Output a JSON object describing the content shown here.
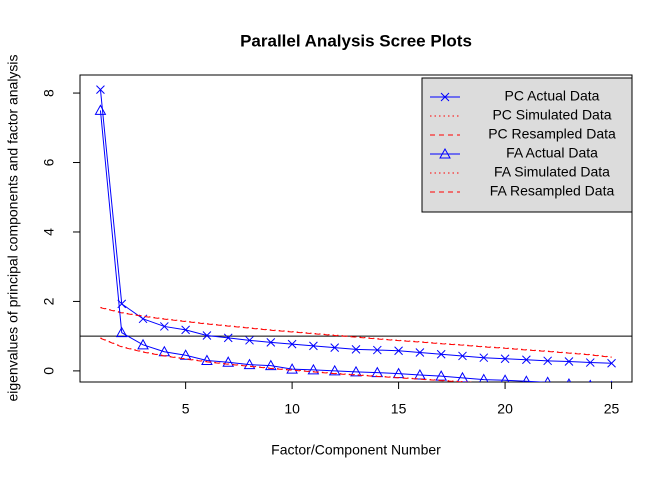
{
  "chart_data": {
    "type": "line",
    "title": "Parallel Analysis Scree Plots",
    "xlabel": "Factor/Component Number",
    "ylabel": "eigenvalues of principal components and factor analysis",
    "x": [
      1,
      2,
      3,
      4,
      5,
      6,
      7,
      8,
      9,
      10,
      11,
      12,
      13,
      14,
      15,
      16,
      17,
      18,
      19,
      20,
      21,
      22,
      23,
      24,
      25
    ],
    "xlim": [
      0.04,
      25.96
    ],
    "xticks": [
      5,
      10,
      15,
      20,
      25
    ],
    "ylim": [
      -0.32,
      8.52
    ],
    "yticks": [
      0,
      2,
      4,
      6,
      8
    ],
    "hline": 1,
    "legend": "top-right",
    "series": [
      {
        "name": "PC  Actual Data",
        "color": "#0000ff",
        "line": "solid",
        "marker": "x",
        "values": [
          8.1,
          1.93,
          1.5,
          1.28,
          1.18,
          1.02,
          0.95,
          0.88,
          0.82,
          0.77,
          0.72,
          0.67,
          0.62,
          0.6,
          0.58,
          0.53,
          0.48,
          0.43,
          0.38,
          0.35,
          0.32,
          0.29,
          0.27,
          0.24,
          0.22
        ]
      },
      {
        "name": "PC  Simulated Data",
        "color": "#ff0000",
        "line": "dotted",
        "values": [
          1.83,
          1.68,
          1.58,
          1.5,
          1.43,
          1.36,
          1.3,
          1.24,
          1.18,
          1.13,
          1.08,
          1.03,
          0.98,
          0.93,
          0.88,
          0.84,
          0.79,
          0.75,
          0.7,
          0.66,
          0.61,
          0.57,
          0.52,
          0.47,
          0.4
        ]
      },
      {
        "name": "PC  Resampled Data",
        "color": "#ff0000",
        "line": "dashed",
        "values": [
          1.82,
          1.67,
          1.57,
          1.49,
          1.42,
          1.35,
          1.29,
          1.23,
          1.17,
          1.12,
          1.07,
          1.02,
          0.97,
          0.92,
          0.87,
          0.83,
          0.78,
          0.74,
          0.69,
          0.65,
          0.6,
          0.56,
          0.51,
          0.46,
          0.39
        ]
      },
      {
        "name": "FA  Actual Data",
        "color": "#0000ff",
        "line": "solid",
        "marker": "triangle",
        "values": [
          7.5,
          1.1,
          0.75,
          0.55,
          0.45,
          0.3,
          0.25,
          0.18,
          0.15,
          0.05,
          0.03,
          0.0,
          -0.03,
          -0.05,
          -0.08,
          -0.12,
          -0.15,
          -0.2,
          -0.25,
          -0.27,
          -0.3,
          -0.33,
          -0.38,
          -0.42,
          -0.45
        ]
      },
      {
        "name": "FA  Simulated Data",
        "color": "#ff0000",
        "line": "dotted",
        "values": [
          0.95,
          0.7,
          0.55,
          0.44,
          0.35,
          0.27,
          0.2,
          0.14,
          0.08,
          0.03,
          -0.02,
          -0.07,
          -0.11,
          -0.15,
          -0.19,
          -0.23,
          -0.27,
          -0.31,
          -0.35,
          -0.39,
          -0.43,
          -0.47,
          -0.5,
          -0.54,
          -0.58
        ]
      },
      {
        "name": "FA  Resampled Data",
        "color": "#ff0000",
        "line": "dashed",
        "values": [
          0.94,
          0.69,
          0.54,
          0.43,
          0.34,
          0.26,
          0.19,
          0.13,
          0.07,
          0.02,
          -0.03,
          -0.08,
          -0.12,
          -0.16,
          -0.2,
          -0.24,
          -0.28,
          -0.32,
          -0.36,
          -0.4,
          -0.44,
          -0.48,
          -0.51,
          -0.55,
          -0.59
        ]
      }
    ]
  }
}
